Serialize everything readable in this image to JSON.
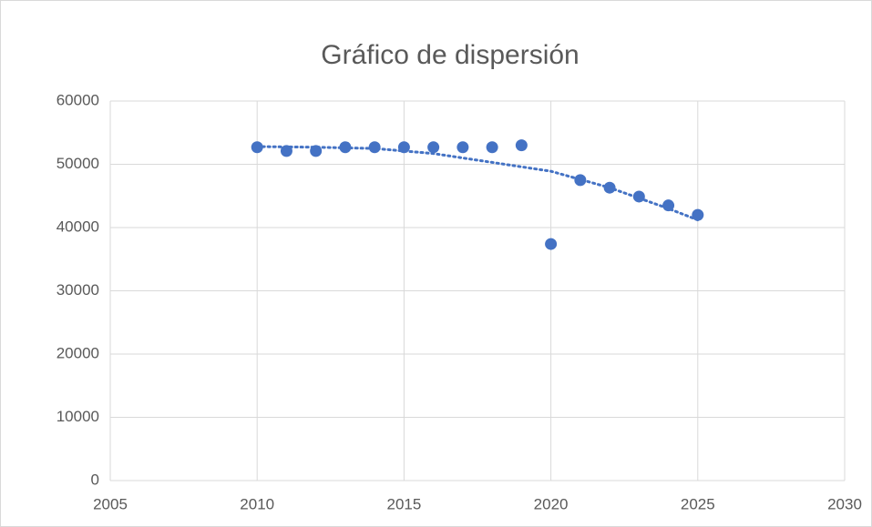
{
  "chart_data": {
    "type": "scatter",
    "title": "Gráfico de dispersión",
    "x": [
      2010,
      2011,
      2012,
      2013,
      2014,
      2015,
      2016,
      2017,
      2018,
      2019,
      2020,
      2021,
      2022,
      2023,
      2024,
      2025
    ],
    "values": [
      52700,
      52100,
      52100,
      52700,
      52700,
      52700,
      52700,
      52700,
      52700,
      53000,
      37400,
      47500,
      46300,
      44900,
      43500,
      42000
    ],
    "color": "#4472c4",
    "trendline": {
      "x": [
        2010,
        2012,
        2014,
        2016,
        2018,
        2020,
        2022,
        2024,
        2025
      ],
      "values": [
        52800,
        52700,
        52500,
        51700,
        50300,
        48900,
        46300,
        43000,
        41200
      ],
      "color": "#4472c4"
    },
    "xlim": [
      2005,
      2030
    ],
    "xticks": [
      2005,
      2010,
      2015,
      2020,
      2025,
      2030
    ],
    "ylim": [
      0,
      60000
    ],
    "yticks": [
      0,
      10000,
      20000,
      30000,
      40000,
      50000,
      60000
    ],
    "grid": true
  }
}
